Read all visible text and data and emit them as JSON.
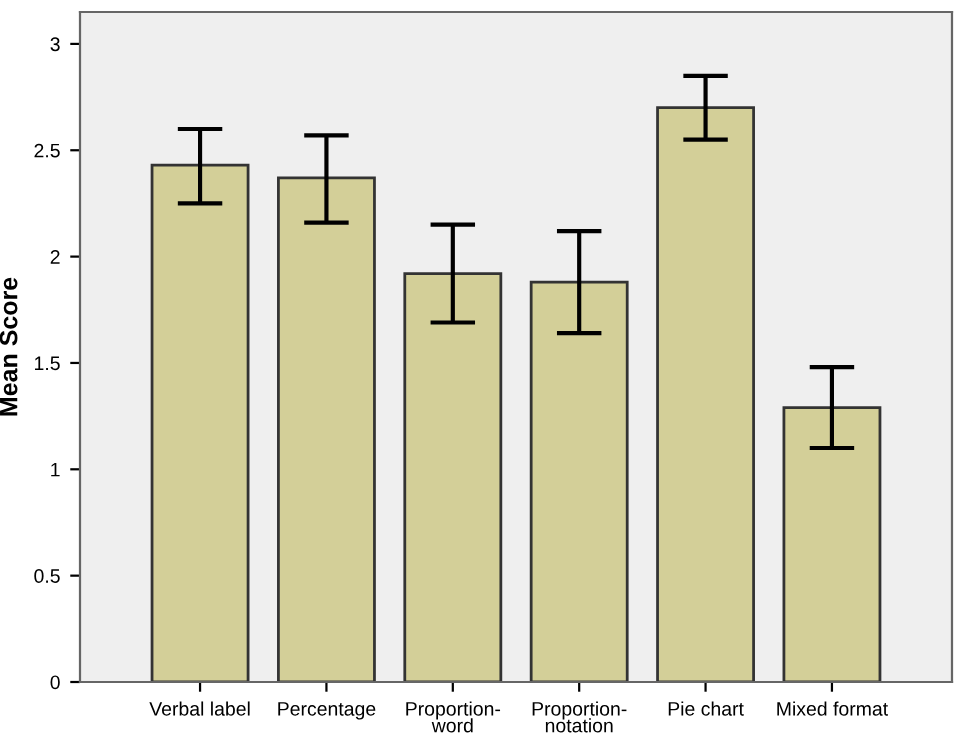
{
  "chart_data": {
    "type": "bar",
    "ylabel": "Mean Score",
    "categories": [
      "Verbal label",
      "Percentage",
      "Proportion-\nword",
      "Proportion-\nnotation",
      "Pie chart",
      "Mixed format"
    ],
    "values": [
      2.43,
      2.37,
      1.92,
      1.88,
      2.7,
      1.29
    ],
    "errors": [
      [
        2.25,
        2.6
      ],
      [
        2.16,
        2.57
      ],
      [
        1.69,
        2.15
      ],
      [
        1.64,
        2.12
      ],
      [
        2.55,
        2.85
      ],
      [
        1.1,
        1.48
      ]
    ],
    "color": "#d3cf98",
    "ylim": [
      0,
      3.15
    ],
    "yticks": [
      0,
      0.5,
      1,
      1.5,
      2,
      2.5,
      3
    ],
    "grid": false
  }
}
